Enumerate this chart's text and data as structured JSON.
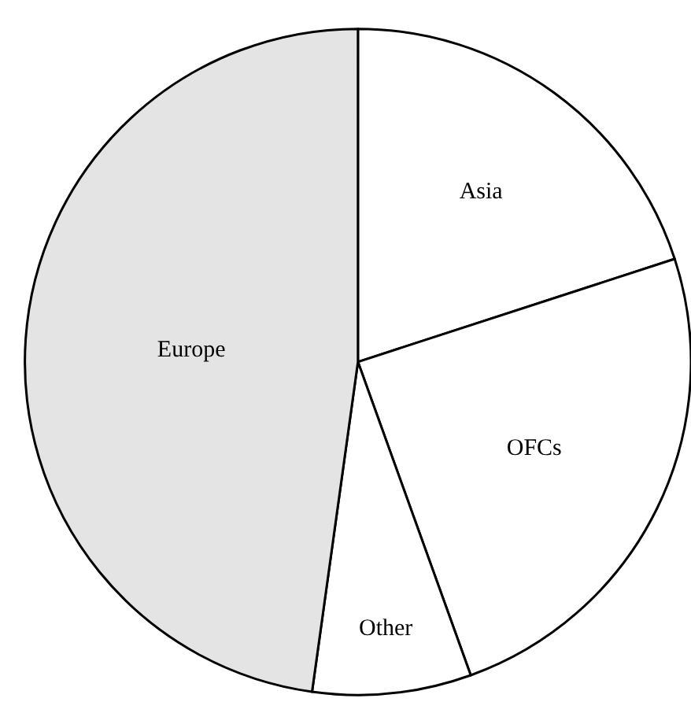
{
  "chart_data": {
    "type": "pie",
    "categories": [
      "Asia",
      "OFCs",
      "Other",
      "Europe"
    ],
    "values": [
      20,
      24.5,
      7.7,
      47.8
    ],
    "colors": [
      "#ffffff",
      "#ffffff",
      "#ffffff",
      "#e4e4e4"
    ],
    "legend": false
  }
}
